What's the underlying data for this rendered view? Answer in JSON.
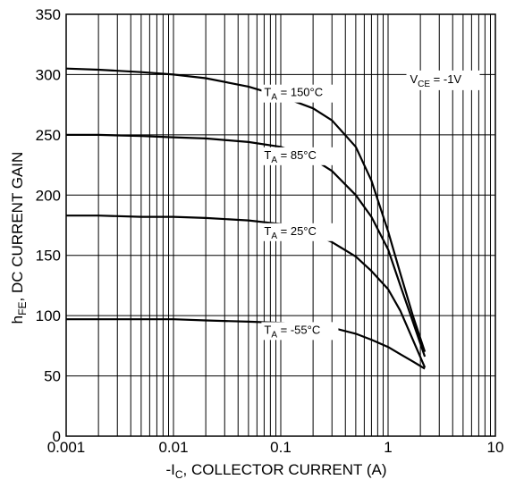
{
  "chart_data": {
    "type": "line",
    "x_scale": "log",
    "xlim": [
      0.001,
      10
    ],
    "ylim": [
      0,
      350
    ],
    "grid": true,
    "xlabel": {
      "pre": "-I",
      "sub": "C",
      "post": ", COLLECTOR CURRENT (A)"
    },
    "ylabel": {
      "pre": "h",
      "sub": "FE",
      "post": ", DC CURRENT GAIN"
    },
    "x_tick_labels": [
      {
        "value": 0.001,
        "label": "0.001"
      },
      {
        "value": 0.01,
        "label": "0.01"
      },
      {
        "value": 0.1,
        "label": "0.1"
      },
      {
        "value": 1,
        "label": "1"
      },
      {
        "value": 10,
        "label": "10"
      }
    ],
    "y_tick_labels": [
      {
        "value": 0,
        "label": "0"
      },
      {
        "value": 50,
        "label": "50"
      },
      {
        "value": 100,
        "label": "100"
      },
      {
        "value": 150,
        "label": "150"
      },
      {
        "value": 200,
        "label": "200"
      },
      {
        "value": 250,
        "label": "250"
      },
      {
        "value": 300,
        "label": "300"
      },
      {
        "value": 350,
        "label": "350"
      }
    ],
    "condition": {
      "pre": "V",
      "sub": "CE",
      "post": " = -1V"
    },
    "series": [
      {
        "name": "T_A = 150°C",
        "label": {
          "pre": "T",
          "sub": "A",
          "post": " = 150°C",
          "x": 0.07,
          "y": 282
        },
        "points": [
          [
            0.001,
            305
          ],
          [
            0.002,
            304
          ],
          [
            0.005,
            302
          ],
          [
            0.01,
            300
          ],
          [
            0.02,
            297
          ],
          [
            0.05,
            290
          ],
          [
            0.1,
            282
          ],
          [
            0.2,
            272
          ],
          [
            0.3,
            262
          ],
          [
            0.5,
            240
          ],
          [
            0.7,
            212
          ],
          [
            1.0,
            170
          ],
          [
            1.3,
            135
          ],
          [
            1.7,
            100
          ],
          [
            2.2,
            70
          ]
        ]
      },
      {
        "name": "T_A = 85°C",
        "label": {
          "pre": "T",
          "sub": "A",
          "post": " = 85°C",
          "x": 0.07,
          "y": 230
        },
        "points": [
          [
            0.001,
            250
          ],
          [
            0.002,
            250
          ],
          [
            0.005,
            249
          ],
          [
            0.01,
            248
          ],
          [
            0.02,
            247
          ],
          [
            0.05,
            244
          ],
          [
            0.1,
            240
          ],
          [
            0.2,
            230
          ],
          [
            0.3,
            220
          ],
          [
            0.5,
            200
          ],
          [
            0.7,
            182
          ],
          [
            1.0,
            155
          ],
          [
            1.3,
            125
          ],
          [
            1.7,
            95
          ],
          [
            2.2,
            66
          ]
        ]
      },
      {
        "name": "T_A = 25°C",
        "label": {
          "pre": "T",
          "sub": "A",
          "post": " = 25°C",
          "x": 0.07,
          "y": 167
        },
        "points": [
          [
            0.001,
            183
          ],
          [
            0.002,
            183
          ],
          [
            0.005,
            182
          ],
          [
            0.01,
            182
          ],
          [
            0.02,
            181
          ],
          [
            0.05,
            179
          ],
          [
            0.1,
            176
          ],
          [
            0.2,
            168
          ],
          [
            0.3,
            161
          ],
          [
            0.5,
            149
          ],
          [
            0.7,
            137
          ],
          [
            1.0,
            122
          ],
          [
            1.3,
            104
          ],
          [
            1.7,
            80
          ],
          [
            2.2,
            57
          ]
        ]
      },
      {
        "name": "T_A = -55°C",
        "label": {
          "pre": "T",
          "sub": "A",
          "post": " = -55°C",
          "x": 0.07,
          "y": 85
        },
        "points": [
          [
            0.001,
            97
          ],
          [
            0.002,
            97
          ],
          [
            0.005,
            97
          ],
          [
            0.01,
            97
          ],
          [
            0.02,
            96
          ],
          [
            0.05,
            95
          ],
          [
            0.1,
            94
          ],
          [
            0.2,
            92
          ],
          [
            0.3,
            90
          ],
          [
            0.5,
            85
          ],
          [
            0.7,
            80
          ],
          [
            1.0,
            74
          ],
          [
            1.3,
            68
          ],
          [
            1.7,
            62
          ],
          [
            2.2,
            56
          ]
        ]
      }
    ]
  }
}
